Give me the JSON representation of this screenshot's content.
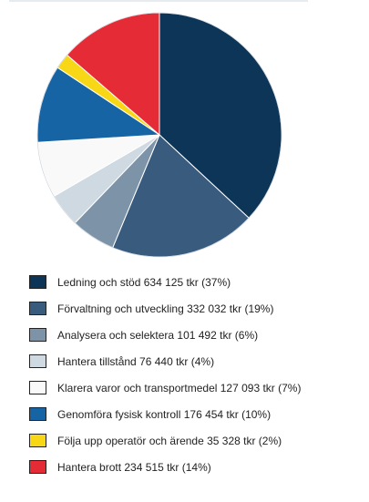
{
  "chart_data": {
    "type": "pie",
    "title": "",
    "start_angle_deg": 0,
    "direction": "clockwise",
    "unit": "tkr",
    "slices": [
      {
        "label": "Ledning och stöd 634 125 tkr (37%)",
        "value": 634125,
        "color": "#0d3557"
      },
      {
        "label": "Förvaltning och utveckling 332 032 tkr (19%)",
        "value": 332032,
        "color": "#385b7e"
      },
      {
        "label": "Analysera och selektera 101 492 tkr (6%)",
        "value": 101492,
        "color": "#7d93a8"
      },
      {
        "label": "Hantera tillstånd 76 440 tkr (4%)",
        "value": 76440,
        "color": "#cfd9e1"
      },
      {
        "label": "Klarera varor och transportmedel 127 093 tkr (7%)",
        "value": 127093,
        "color": "#f9f9f9"
      },
      {
        "label": "Genomföra fysisk kontroll 176 454 tkr (10%)",
        "value": 176454,
        "color": "#1664a4"
      },
      {
        "label": "Följa upp operatör och ärende 35 328 tkr (2%)",
        "value": 35328,
        "color": "#f8d816"
      },
      {
        "label": "Hantera brott 234 515 tkr (14%)",
        "value": 234515,
        "color": "#e52b36"
      }
    ],
    "legend_position": "bottom"
  }
}
